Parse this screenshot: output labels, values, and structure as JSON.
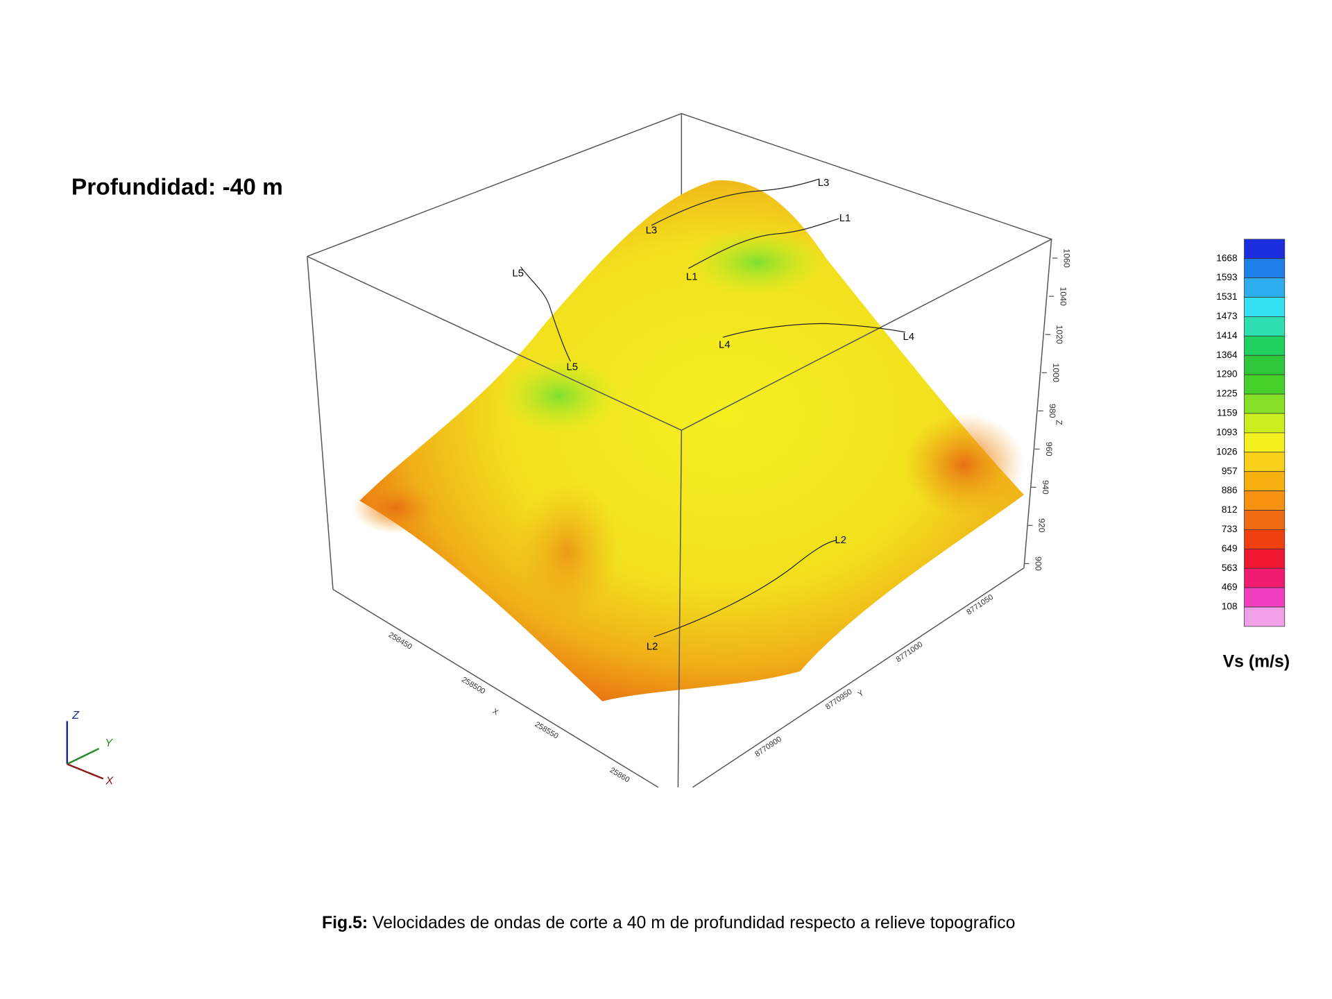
{
  "title": "Profundidad: -40 m",
  "colorbar": {
    "label": "Vs (m/s)",
    "ticks": [
      "1668",
      "1593",
      "1531",
      "1473",
      "1414",
      "1364",
      "1290",
      "1225",
      "1159",
      "1093",
      "1026",
      "957",
      "886",
      "812",
      "733",
      "649",
      "563",
      "469",
      "108"
    ],
    "colors": [
      "#1a2ee0",
      "#1f7fe8",
      "#2eaef0",
      "#35e0f0",
      "#2ee0b0",
      "#22d060",
      "#2ec83a",
      "#46d02a",
      "#86e028",
      "#c8ee20",
      "#f4f020",
      "#f8d018",
      "#f8b010",
      "#f89010",
      "#f06a10",
      "#f04010",
      "#f01830",
      "#f01c70",
      "#f040c0",
      "#f0a0e8"
    ]
  },
  "profiles": [
    "L1",
    "L2",
    "L3",
    "L4",
    "L5"
  ],
  "axes": {
    "x": {
      "label": "X",
      "ticks": [
        "258450",
        "258500",
        "258550",
        "25860"
      ]
    },
    "y": {
      "label": "Y",
      "ticks": [
        "8770900",
        "8770950",
        "8771000",
        "8771050"
      ]
    },
    "z": {
      "label": "Z",
      "ticks": [
        "900",
        "920",
        "940",
        "960",
        "980",
        "1000",
        "1020",
        "1040",
        "1060"
      ]
    }
  },
  "triad": [
    "Z",
    "Y",
    "X"
  ],
  "caption": {
    "label": "Fig.5:",
    "text": " Velocidades de ondas de corte a 40 m de profundidad respecto a relieve topografico"
  }
}
